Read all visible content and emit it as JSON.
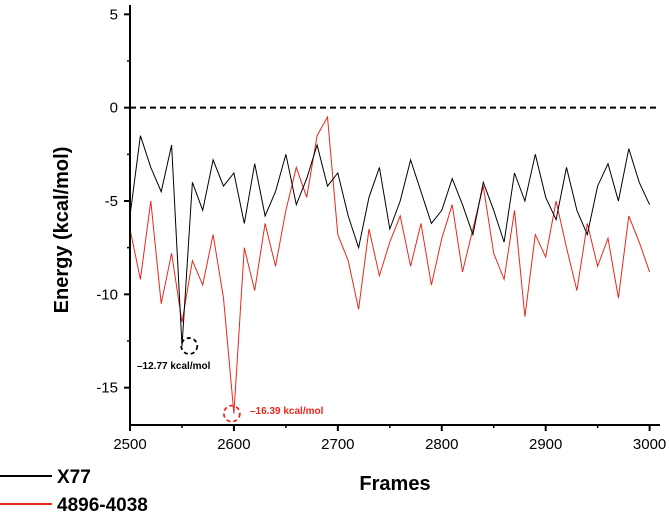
{
  "chart_data": {
    "type": "line",
    "title": "",
    "xlabel": "Frames",
    "ylabel": "Energy (kcal/mol)",
    "xlim": [
      2500,
      3010
    ],
    "ylim": [
      -17,
      5.5
    ],
    "xticks": [
      2500,
      2600,
      2700,
      2800,
      2900,
      3000
    ],
    "yticks": [
      5,
      0,
      -5,
      -10,
      -15
    ],
    "reference_line": {
      "y": 0,
      "style": "dashed",
      "color": "#000000"
    },
    "grid": false,
    "legend": {
      "position": "bottom-left"
    },
    "series": [
      {
        "name": "X77",
        "color": "#000000",
        "x": [
          2500,
          2510,
          2520,
          2530,
          2540,
          2550,
          2560,
          2570,
          2580,
          2590,
          2600,
          2610,
          2620,
          2630,
          2640,
          2650,
          2660,
          2670,
          2680,
          2690,
          2700,
          2710,
          2720,
          2730,
          2740,
          2750,
          2760,
          2770,
          2780,
          2790,
          2800,
          2810,
          2820,
          2830,
          2840,
          2850,
          2860,
          2870,
          2880,
          2890,
          2900,
          2910,
          2920,
          2930,
          2940,
          2950,
          2960,
          2970,
          2980,
          2990,
          3000
        ],
        "y": [
          -5.8,
          -1.5,
          -3.2,
          -4.5,
          -2.0,
          -12.77,
          -4.0,
          -5.5,
          -2.8,
          -4.2,
          -3.5,
          -6.2,
          -3.0,
          -5.8,
          -4.5,
          -2.5,
          -5.2,
          -3.8,
          -2.0,
          -4.2,
          -3.5,
          -5.8,
          -7.5,
          -4.8,
          -3.2,
          -6.5,
          -5.0,
          -2.8,
          -4.5,
          -6.2,
          -5.5,
          -3.8,
          -5.2,
          -6.8,
          -4.0,
          -5.5,
          -7.2,
          -3.5,
          -5.0,
          -2.5,
          -4.8,
          -6.0,
          -3.2,
          -5.5,
          -6.8,
          -4.2,
          -3.0,
          -5.0,
          -2.2,
          -4.0,
          -5.2
        ]
      },
      {
        "name": "4896-4038",
        "color": "#e8281e",
        "x": [
          2500,
          2510,
          2520,
          2530,
          2540,
          2550,
          2560,
          2570,
          2580,
          2590,
          2600,
          2610,
          2620,
          2630,
          2640,
          2650,
          2660,
          2670,
          2680,
          2690,
          2700,
          2710,
          2720,
          2730,
          2740,
          2750,
          2760,
          2770,
          2780,
          2790,
          2800,
          2810,
          2820,
          2830,
          2840,
          2850,
          2860,
          2870,
          2880,
          2890,
          2900,
          2910,
          2920,
          2930,
          2940,
          2950,
          2960,
          2970,
          2980,
          2990,
          3000
        ],
        "y": [
          -6.5,
          -9.2,
          -5.0,
          -10.5,
          -7.8,
          -11.5,
          -8.2,
          -9.5,
          -6.8,
          -10.2,
          -16.39,
          -7.5,
          -9.8,
          -6.2,
          -8.5,
          -5.5,
          -3.2,
          -4.8,
          -1.5,
          -0.5,
          -6.8,
          -8.2,
          -10.8,
          -6.5,
          -9.0,
          -7.2,
          -5.8,
          -8.5,
          -6.2,
          -9.5,
          -7.0,
          -5.2,
          -8.8,
          -6.5,
          -4.2,
          -7.8,
          -9.2,
          -5.5,
          -11.2,
          -6.8,
          -8.0,
          -5.0,
          -7.5,
          -9.8,
          -6.2,
          -8.5,
          -7.0,
          -10.2,
          -5.8,
          -7.2,
          -8.8
        ]
      }
    ],
    "annotations": [
      {
        "text": "–12.77 kcal/mol",
        "x": 2557,
        "y": -12.77,
        "color": "#000000"
      },
      {
        "text": "–16.39 kcal/mol",
        "x": 2598,
        "y": -16.39,
        "color": "#e8281e"
      }
    ]
  }
}
